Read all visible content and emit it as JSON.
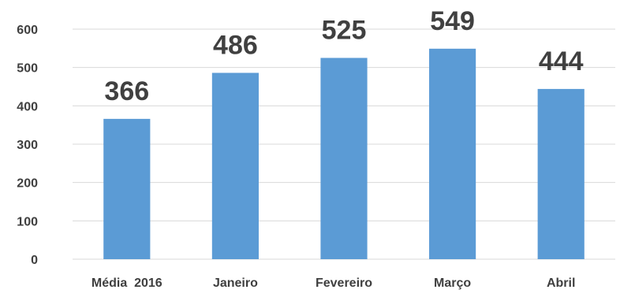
{
  "chart_data": {
    "type": "bar",
    "title": "",
    "xlabel": "",
    "ylabel": "",
    "categories": [
      "Média  2016",
      "Janeiro",
      "Fevereiro",
      "Março",
      "Abril"
    ],
    "series": [
      {
        "values": [
          366,
          486,
          525,
          549,
          444
        ]
      }
    ],
    "ylim": [
      0,
      600
    ],
    "yticks": [
      0,
      100,
      200,
      300,
      400,
      500,
      600
    ],
    "grid": true,
    "legend": "none",
    "bar_color": "#5b9bd5",
    "data_labels": true
  }
}
